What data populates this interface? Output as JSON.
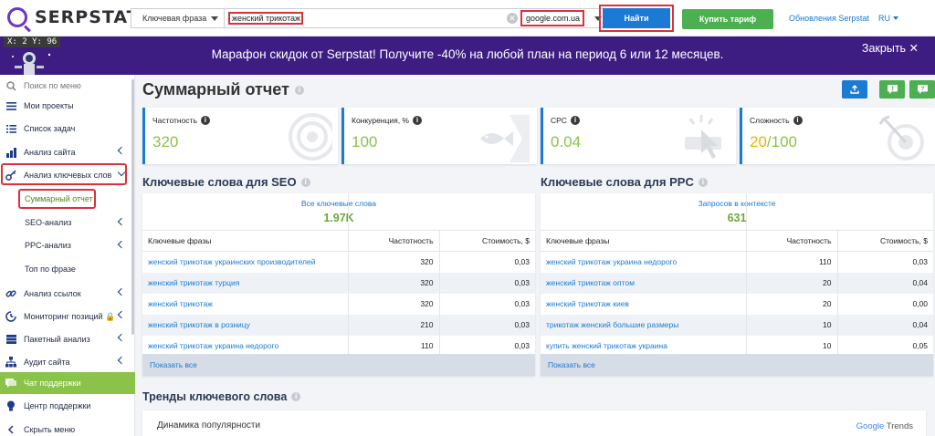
{
  "header": {
    "logo_text": "SERPSTAT",
    "search_mode": "Ключевая фраза",
    "query": "женский трикотаж",
    "domain": "google.com.ua",
    "find_label": "Найти",
    "buy_label": "Купить тариф",
    "updates_label": "Обновления Serpstat",
    "lang": "RU"
  },
  "overlay": {
    "coords": "X: 2 Y: 96"
  },
  "banner": {
    "text": "Марафон скидок от Serpstat! Получите -40% на любой план на период 6 или 12 месяцев.",
    "close_label": "Закрыть ✕"
  },
  "sidebar": {
    "search": "Поиск по меню",
    "projects": "Мои проекты",
    "tasks": "Список задач",
    "site_analysis": "Анализ сайта",
    "keyword_analysis": "Анализ ключевых слов",
    "summary": "Суммарный отчет",
    "seo": "SEO-анализ",
    "ppc": "PPC-анализ",
    "top": "Топ по фразе",
    "links": "Анализ ссылок",
    "positions": "Мониторинг позиций 🔒",
    "batch": "Пакетный анализ",
    "audit": "Аудит сайта",
    "chat": "Чат поддержки",
    "help": "Центр поддержки",
    "hide": "Скрыть меню"
  },
  "page": {
    "title": "Суммарный отчет"
  },
  "cards": {
    "freq": {
      "label": "Частотность",
      "value": "320"
    },
    "comp": {
      "label": "Конкуренция, %",
      "value": "100"
    },
    "cpc": {
      "label": "CPC",
      "value": "0.04"
    },
    "diff": {
      "label": "Сложность",
      "current": "20",
      "max": "/100"
    }
  },
  "seo": {
    "title": "Ключевые слова для SEO",
    "stat_label": "Все ключевые слова",
    "stat_value": "1.97K",
    "col_phrase": "Ключевые фразы",
    "col_freq": "Частотность",
    "col_cost": "Стоимость, $",
    "rows": [
      {
        "phrase": "женский трикотаж украинских производителей",
        "freq": "320",
        "cost": "0,03"
      },
      {
        "phrase": "женский трикотаж турция",
        "freq": "320",
        "cost": "0,03"
      },
      {
        "phrase": "женский трикотаж",
        "freq": "320",
        "cost": "0,03"
      },
      {
        "phrase": "женский трикотаж в розницу",
        "freq": "210",
        "cost": "0,03"
      },
      {
        "phrase": "женский трикотаж украина недорого",
        "freq": "110",
        "cost": "0,03"
      }
    ],
    "show_all": "Показать все"
  },
  "ppc": {
    "title": "Ключевые слова для PPC",
    "stat_label": "Запросов в контексте",
    "stat_value": "631",
    "col_phrase": "Ключевые фразы",
    "col_freq": "Частотность",
    "col_cost": "Стоимость, $",
    "rows": [
      {
        "phrase": "женский трикотаж украина недорого",
        "freq": "110",
        "cost": "0,03"
      },
      {
        "phrase": "женский трикотаж оптом",
        "freq": "20",
        "cost": "0,04"
      },
      {
        "phrase": "женский трикотаж киев",
        "freq": "20",
        "cost": "0,00"
      },
      {
        "phrase": "трикотаж женский большие размеры",
        "freq": "10",
        "cost": "0,04"
      },
      {
        "phrase": "купить женский трикотаж украина",
        "freq": "10",
        "cost": "0,05"
      }
    ],
    "show_all": "Показать все"
  },
  "trends": {
    "title": "Тренды ключевого слова",
    "panel_label": "Динамика популярности",
    "source_g": "Google",
    "source_rest": " Trends"
  },
  "colors": {
    "brand": "#6a37c6",
    "primary": "#1a7ad4",
    "accent_green": "#4caf50",
    "highlight": "#d9323c",
    "banner": "#3d1d82"
  }
}
